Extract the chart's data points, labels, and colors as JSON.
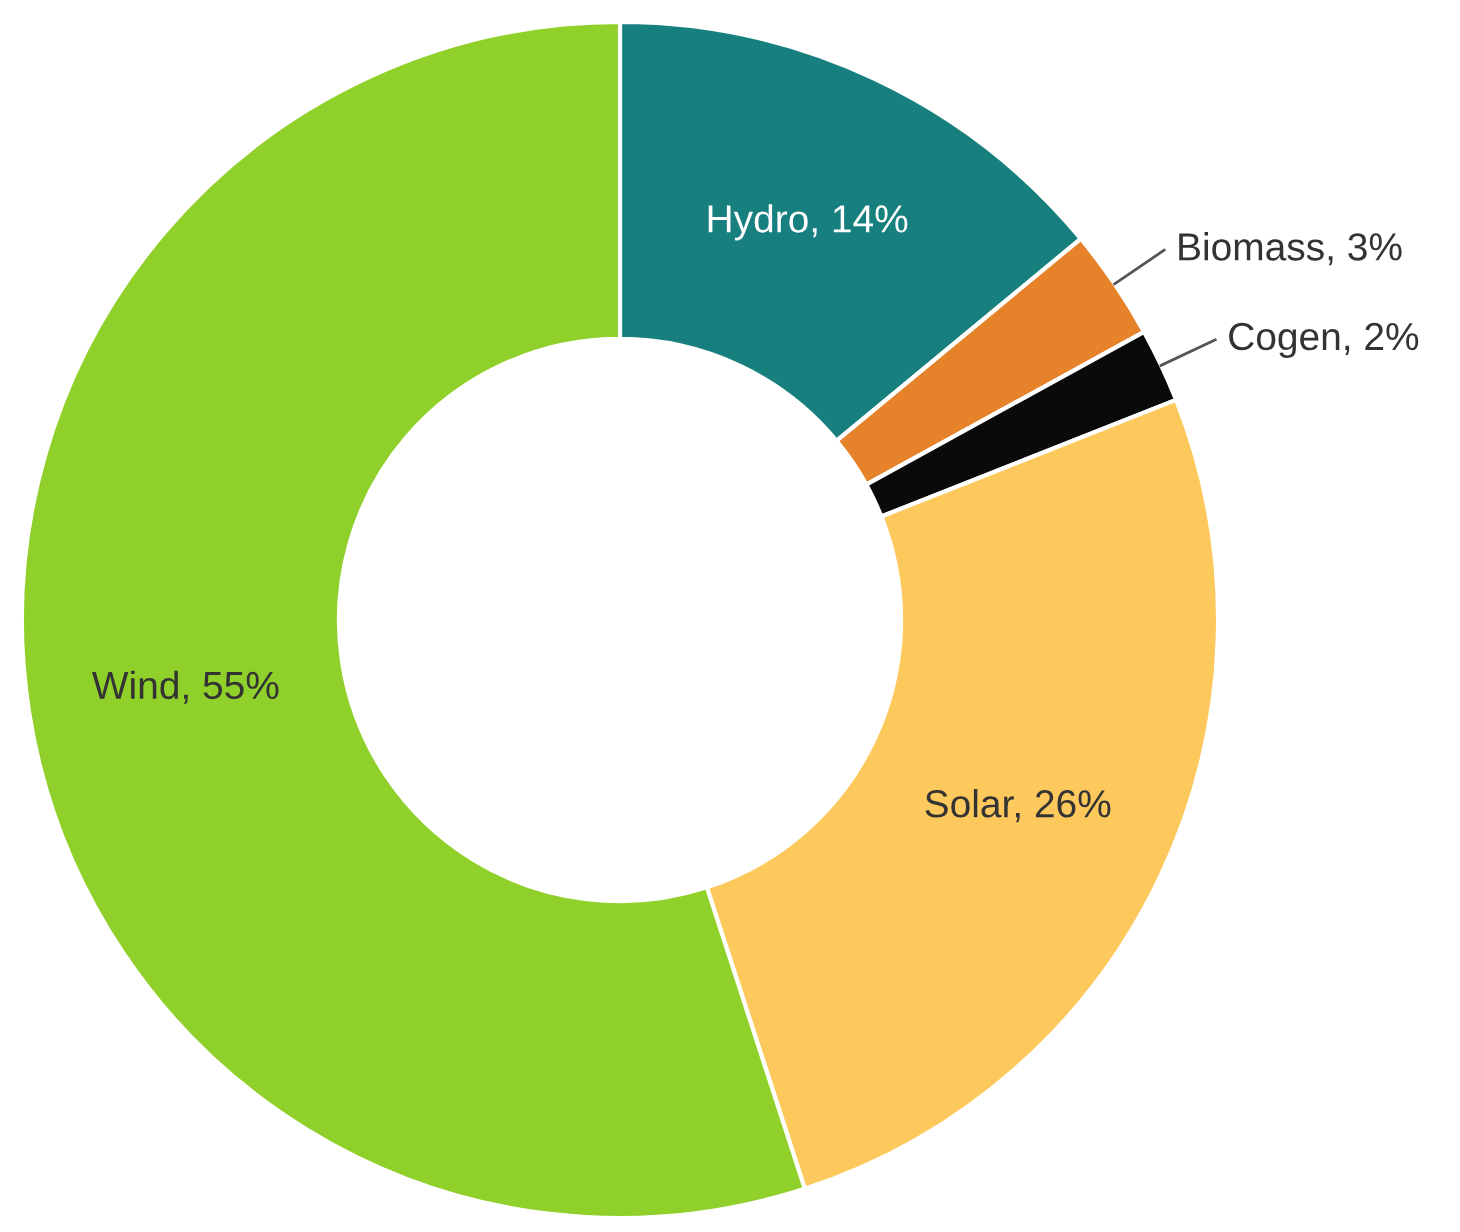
{
  "chart_data": {
    "type": "donut",
    "categories": [
      "Hydro, 14%",
      "Biomass, 3%",
      "Cogen, 2%",
      "Solar, 26%",
      "Wind, 55%"
    ],
    "values": [
      14,
      3,
      2,
      26,
      55
    ],
    "colors": [
      "#17807e",
      "#e6832a",
      "#0a0a0a",
      "#fdc95c",
      "#8fd12a"
    ],
    "legend": false
  }
}
